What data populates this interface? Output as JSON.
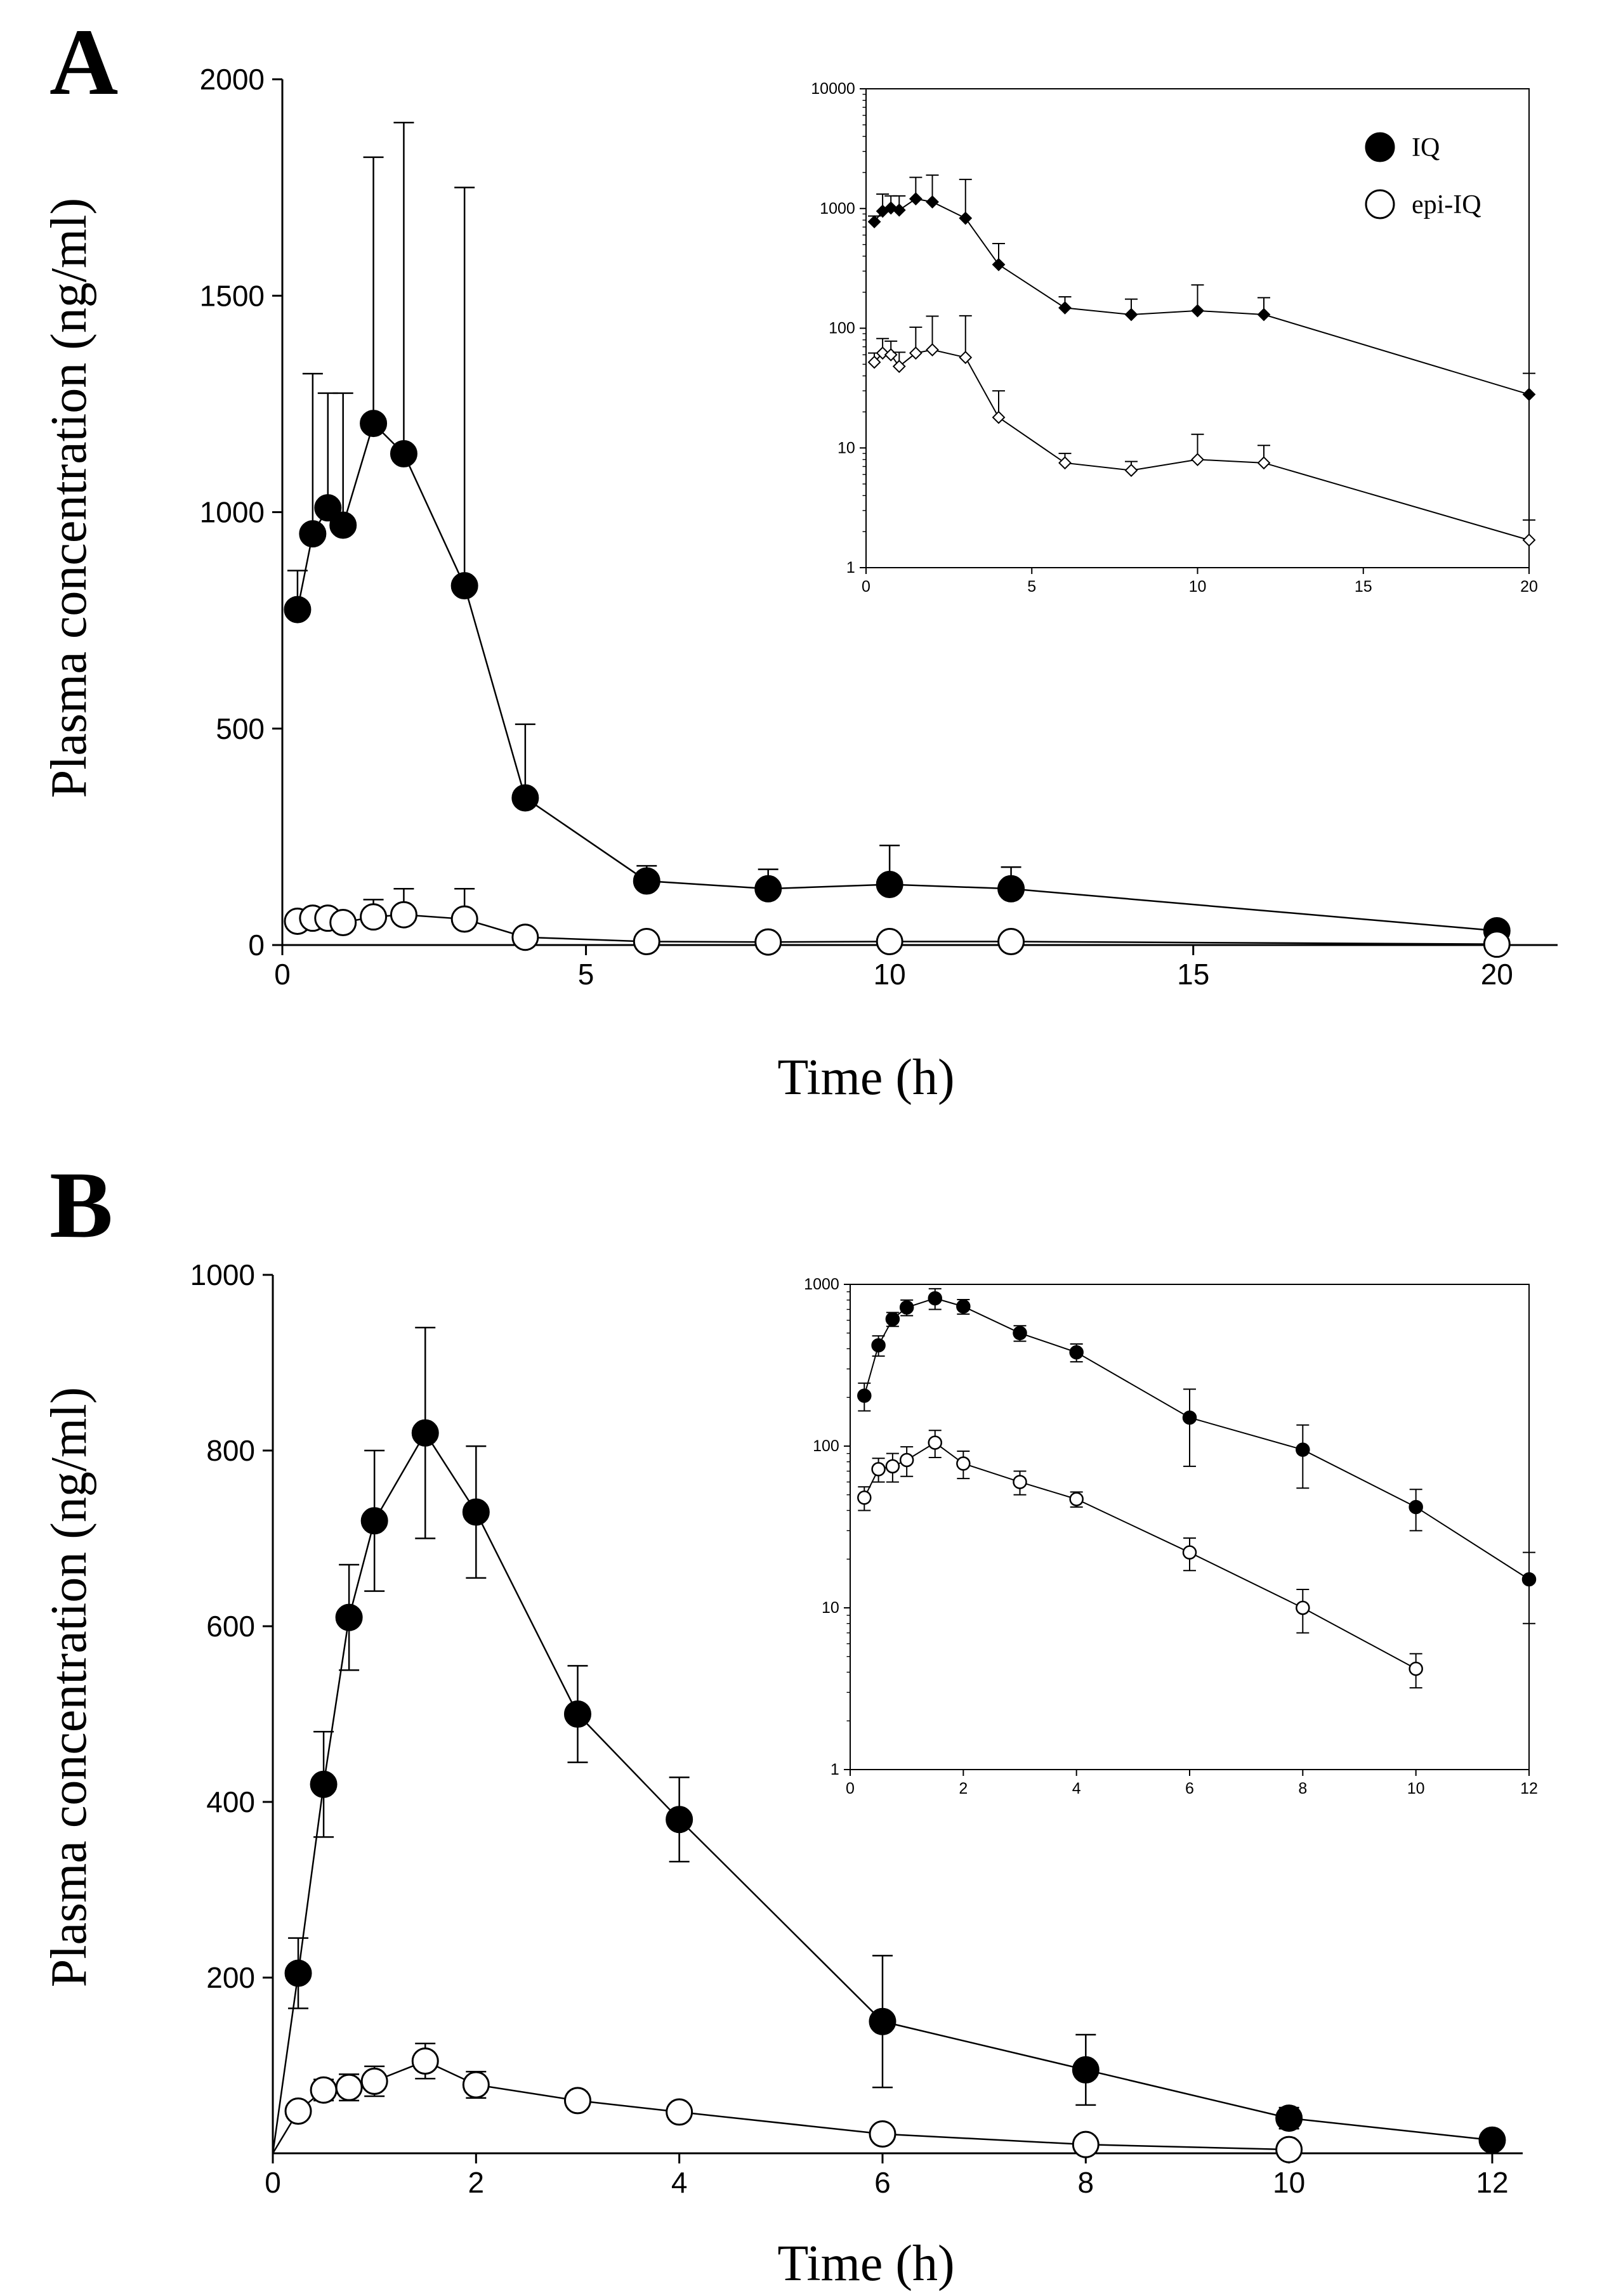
{
  "chart_data": [
    {
      "id": "A-main",
      "panel_label": "A",
      "type": "line",
      "scale": "linear",
      "title": "",
      "xlabel": "Time (h)",
      "ylabel": "Plasma concentration (ng/ml)",
      "xlim": [
        0,
        21
      ],
      "ylim": [
        0,
        2000
      ],
      "x_ticks": [
        0,
        5,
        10,
        15,
        20
      ],
      "x_tick_labels": [
        "0",
        "5",
        "10",
        "15",
        "20"
      ],
      "y_ticks": [
        0,
        500,
        1000,
        1500,
        2000
      ],
      "y_tick_labels": [
        "0",
        "500",
        "1000",
        "1500",
        "2000"
      ],
      "series": [
        {
          "name": "IQ",
          "marker": "filled",
          "x": [
            0.25,
            0.5,
            0.75,
            1,
            1.5,
            2,
            3,
            4,
            6,
            8,
            10,
            12,
            20
          ],
          "y": [
            775,
            950,
            1010,
            970,
            1205,
            1135,
            830,
            340,
            148,
            130,
            140,
            130,
            33
          ],
          "err": [
            90,
            370,
            265,
            305,
            615,
            765,
            920,
            170,
            35,
            45,
            90,
            50,
            8
          ]
        },
        {
          "name": "epi-IQ",
          "marker": "open",
          "x": [
            0.25,
            0.5,
            0.75,
            1,
            1.5,
            2,
            3,
            4,
            6,
            8,
            10,
            12,
            20
          ],
          "y": [
            55,
            62,
            62,
            52,
            65,
            70,
            60,
            18,
            8,
            7,
            8,
            8,
            2
          ],
          "err": [
            12,
            20,
            18,
            15,
            40,
            60,
            70,
            12,
            2,
            2,
            5,
            3,
            1
          ]
        }
      ]
    },
    {
      "id": "A-inset",
      "type": "line",
      "scale": "log",
      "title": "",
      "xlabel": "",
      "ylabel": "",
      "xlim": [
        0,
        20
      ],
      "ylim": [
        1,
        10000
      ],
      "x_ticks": [
        0,
        5,
        10,
        15,
        20
      ],
      "x_tick_labels": [
        "0",
        "5",
        "10",
        "15",
        "20"
      ],
      "y_ticks": [
        1,
        10,
        100,
        1000,
        10000
      ],
      "y_tick_labels": [
        "1",
        "10",
        "100",
        "1000",
        "10000"
      ],
      "legend": {
        "position": "top-right",
        "entries": [
          {
            "label": "IQ",
            "marker": "filled"
          },
          {
            "label": "epi-IQ",
            "marker": "open"
          }
        ]
      },
      "series": [
        {
          "name": "IQ",
          "marker": "filled",
          "x": [
            0.25,
            0.5,
            0.75,
            1,
            1.5,
            2,
            3,
            4,
            6,
            8,
            10,
            12,
            20
          ],
          "y": [
            775,
            950,
            1010,
            970,
            1205,
            1135,
            830,
            340,
            148,
            130,
            140,
            130,
            28
          ],
          "err": [
            90,
            370,
            265,
            305,
            615,
            765,
            920,
            170,
            35,
            45,
            90,
            50,
            14
          ]
        },
        {
          "name": "epi-IQ",
          "marker": "open",
          "x": [
            0.25,
            0.5,
            0.75,
            1,
            1.5,
            2,
            3,
            4,
            6,
            8,
            10,
            12,
            20
          ],
          "y": [
            52,
            62,
            60,
            48,
            62,
            66,
            57,
            18,
            7.5,
            6.5,
            8,
            7.5,
            1.7
          ],
          "err": [
            10,
            20,
            18,
            15,
            40,
            60,
            70,
            12,
            1.5,
            1.2,
            5,
            3,
            0.8
          ]
        }
      ]
    },
    {
      "id": "B-main",
      "panel_label": "B",
      "type": "line",
      "scale": "linear",
      "title": "",
      "xlabel": "Time (h)",
      "ylabel": "Plasma concentration (ng/ml)",
      "xlim": [
        0,
        12.3
      ],
      "ylim": [
        0,
        1000
      ],
      "x_ticks": [
        0,
        2,
        4,
        6,
        8,
        10,
        12
      ],
      "x_tick_labels": [
        "0",
        "2",
        "4",
        "6",
        "8",
        "10",
        "12"
      ],
      "y_ticks": [
        200,
        400,
        600,
        800,
        1000
      ],
      "y_tick_labels": [
        "200",
        "400",
        "600",
        "800",
        "1000"
      ],
      "series": [
        {
          "name": "IQ",
          "marker": "filled",
          "line_from_origin": true,
          "x": [
            0.25,
            0.5,
            0.75,
            1,
            1.5,
            2,
            3,
            4,
            6,
            8,
            10,
            12
          ],
          "y": [
            205,
            420,
            610,
            720,
            820,
            730,
            500,
            380,
            150,
            95,
            40,
            15
          ],
          "err": [
            40,
            60,
            60,
            80,
            120,
            75,
            55,
            48,
            75,
            40,
            12,
            7
          ]
        },
        {
          "name": "epi-IQ",
          "marker": "open",
          "line_from_origin": true,
          "x": [
            0.25,
            0.5,
            0.75,
            1,
            1.5,
            2,
            3,
            4,
            6,
            8,
            10
          ],
          "y": [
            48,
            72,
            75,
            82,
            105,
            78,
            60,
            47,
            22,
            10,
            4.2
          ],
          "err": [
            8,
            12,
            15,
            17,
            20,
            15,
            10,
            5,
            5,
            3,
            1
          ]
        }
      ]
    },
    {
      "id": "B-inset",
      "type": "line",
      "scale": "log",
      "title": "",
      "xlabel": "",
      "ylabel": "",
      "xlim": [
        0,
        12
      ],
      "ylim": [
        1,
        1000
      ],
      "x_ticks": [
        0,
        2,
        4,
        6,
        8,
        10,
        12
      ],
      "x_tick_labels": [
        "0",
        "2",
        "4",
        "6",
        "8",
        "10",
        "12"
      ],
      "y_ticks": [
        1,
        10,
        100,
        1000
      ],
      "y_tick_labels": [
        "1",
        "10",
        "100",
        "1000"
      ],
      "series": [
        {
          "name": "IQ",
          "marker": "filled",
          "x": [
            0.25,
            0.5,
            0.75,
            1,
            1.5,
            2,
            3,
            4,
            6,
            8,
            10,
            12
          ],
          "y": [
            205,
            420,
            610,
            720,
            820,
            730,
            500,
            380,
            150,
            95,
            42,
            15
          ],
          "err": [
            40,
            60,
            60,
            80,
            120,
            75,
            55,
            48,
            75,
            40,
            12,
            7
          ]
        },
        {
          "name": "epi-IQ",
          "marker": "open",
          "x": [
            0.25,
            0.5,
            0.75,
            1,
            1.5,
            2,
            3,
            4,
            6,
            8,
            10
          ],
          "y": [
            48,
            72,
            75,
            82,
            105,
            78,
            60,
            47,
            22,
            10,
            4.2
          ],
          "err": [
            8,
            12,
            15,
            17,
            20,
            15,
            10,
            5,
            5,
            3,
            1
          ]
        }
      ]
    }
  ]
}
